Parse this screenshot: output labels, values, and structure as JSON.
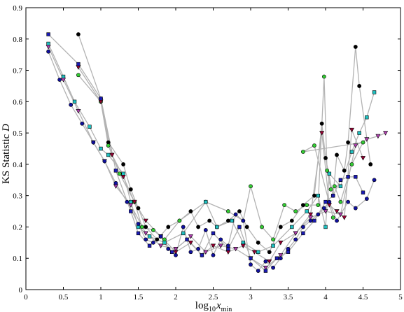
{
  "chart_data": {
    "type": "scatter",
    "xlabel_main": "log",
    "xlabel_sub": "10",
    "xlabel_var": "x",
    "xlabel_varsub": "min",
    "ylabel_main": "KS Statistic ",
    "ylabel_var": "D",
    "xlim": [
      0,
      5
    ],
    "ylim": [
      0,
      0.9
    ],
    "x_ticks": [
      "0",
      "0.5",
      "1",
      "1.5",
      "2",
      "2.5",
      "3",
      "3.5",
      "4",
      "4.5",
      "5"
    ],
    "y_ticks": [
      "0",
      "0.1",
      "0.2",
      "0.3",
      "0.4",
      "0.5",
      "0.6",
      "0.7",
      "0.8",
      "0.9"
    ],
    "grid": false,
    "connector_color": "#b3b3b3",
    "series": [
      {
        "marker": "circle",
        "color": "#000000",
        "points": [
          [
            0.7,
            0.815
          ],
          [
            1.0,
            0.61
          ],
          [
            1.1,
            0.47
          ],
          [
            1.3,
            0.4
          ],
          [
            1.4,
            0.32
          ],
          [
            1.5,
            0.26
          ],
          [
            1.6,
            0.2
          ],
          [
            1.75,
            0.16
          ],
          [
            1.9,
            0.2
          ],
          [
            2.05,
            0.22
          ],
          [
            2.2,
            0.25
          ],
          [
            2.3,
            0.2
          ],
          [
            2.45,
            0.22
          ],
          [
            2.55,
            0.2
          ],
          [
            2.7,
            0.22
          ],
          [
            2.85,
            0.25
          ],
          [
            2.95,
            0.2
          ],
          [
            3.1,
            0.15
          ],
          [
            3.25,
            0.12
          ],
          [
            3.4,
            0.2
          ],
          [
            3.55,
            0.22
          ],
          [
            3.7,
            0.27
          ],
          [
            3.85,
            0.3
          ],
          [
            3.95,
            0.53
          ],
          [
            4.0,
            0.42
          ],
          [
            4.1,
            0.3
          ],
          [
            4.15,
            0.43
          ],
          [
            4.25,
            0.38
          ],
          [
            4.3,
            0.47
          ],
          [
            4.4,
            0.775
          ],
          [
            4.45,
            0.65
          ],
          [
            4.6,
            0.4
          ]
        ]
      },
      {
        "marker": "circle",
        "color": "#33cc33",
        "points": [
          [
            0.7,
            0.685
          ],
          [
            1.0,
            0.6
          ],
          [
            1.1,
            0.46
          ],
          [
            1.25,
            0.37
          ],
          [
            1.45,
            0.28
          ],
          [
            1.55,
            0.2
          ],
          [
            1.7,
            0.19
          ],
          [
            1.85,
            0.16
          ],
          [
            2.05,
            0.22
          ],
          [
            2.4,
            0.28
          ],
          [
            2.7,
            0.25
          ],
          [
            2.9,
            0.22
          ],
          [
            3.0,
            0.33
          ],
          [
            3.15,
            0.2
          ],
          [
            3.3,
            0.16
          ],
          [
            3.45,
            0.27
          ],
          [
            3.6,
            0.25
          ],
          [
            3.75,
            0.27
          ],
          [
            3.9,
            0.27
          ],
          [
            3.98,
            0.68
          ],
          [
            4.02,
            0.38
          ],
          [
            4.07,
            0.32
          ],
          [
            4.12,
            0.33
          ],
          [
            4.2,
            0.28
          ],
          [
            4.35,
            0.4
          ],
          [
            4.5,
            0.47
          ],
          [
            3.7,
            0.44
          ],
          [
            3.85,
            0.46
          ],
          [
            4.1,
            0.23
          ]
        ]
      },
      {
        "marker": "square",
        "color": "#20c0c0",
        "points": [
          [
            0.3,
            0.785
          ],
          [
            0.5,
            0.68
          ],
          [
            0.65,
            0.6
          ],
          [
            0.85,
            0.52
          ],
          [
            1.0,
            0.45
          ],
          [
            1.1,
            0.43
          ],
          [
            1.3,
            0.37
          ],
          [
            1.4,
            0.28
          ],
          [
            1.5,
            0.2
          ],
          [
            1.65,
            0.17
          ],
          [
            1.85,
            0.15
          ],
          [
            2.1,
            0.18
          ],
          [
            2.4,
            0.28
          ],
          [
            2.55,
            0.2
          ],
          [
            2.75,
            0.22
          ],
          [
            2.9,
            0.15
          ],
          [
            3.1,
            0.12
          ],
          [
            3.3,
            0.14
          ],
          [
            3.55,
            0.2
          ],
          [
            3.75,
            0.25
          ],
          [
            3.9,
            0.3
          ],
          [
            4.0,
            0.2
          ],
          [
            4.05,
            0.37
          ],
          [
            4.2,
            0.33
          ],
          [
            4.35,
            0.44
          ],
          [
            4.45,
            0.5
          ],
          [
            4.55,
            0.55
          ],
          [
            4.65,
            0.63
          ]
        ]
      },
      {
        "marker": "triangle",
        "color": "#990033",
        "points": [
          [
            0.7,
            0.71
          ],
          [
            1.0,
            0.6
          ],
          [
            1.15,
            0.43
          ],
          [
            1.3,
            0.36
          ],
          [
            1.45,
            0.28
          ],
          [
            1.6,
            0.22
          ],
          [
            1.8,
            0.17
          ],
          [
            2.0,
            0.12
          ],
          [
            2.2,
            0.15
          ],
          [
            2.35,
            0.11
          ],
          [
            2.5,
            0.14
          ],
          [
            2.7,
            0.12
          ],
          [
            2.9,
            0.14
          ],
          [
            3.05,
            0.12
          ],
          [
            3.25,
            0.09
          ],
          [
            3.4,
            0.15
          ],
          [
            3.6,
            0.18
          ],
          [
            3.8,
            0.24
          ],
          [
            3.95,
            0.5
          ],
          [
            4.05,
            0.27
          ],
          [
            4.15,
            0.25
          ],
          [
            4.25,
            0.23
          ],
          [
            4.35,
            0.51
          ],
          [
            4.5,
            0.42
          ]
        ]
      },
      {
        "marker": "triangle",
        "color": "#b040b0",
        "points": [
          [
            0.3,
            0.775
          ],
          [
            0.5,
            0.67
          ],
          [
            0.7,
            0.57
          ],
          [
            0.9,
            0.47
          ],
          [
            1.05,
            0.41
          ],
          [
            1.2,
            0.33
          ],
          [
            1.4,
            0.27
          ],
          [
            1.6,
            0.18
          ],
          [
            1.8,
            0.14
          ],
          [
            2.0,
            0.13
          ],
          [
            2.2,
            0.17
          ],
          [
            2.4,
            0.12
          ],
          [
            2.6,
            0.14
          ],
          [
            2.8,
            0.13
          ],
          [
            3.0,
            0.1
          ],
          [
            3.2,
            0.07
          ],
          [
            3.4,
            0.11
          ],
          [
            3.6,
            0.18
          ],
          [
            3.8,
            0.23
          ],
          [
            4.0,
            0.25
          ],
          [
            4.2,
            0.24
          ],
          [
            4.4,
            0.46
          ],
          [
            4.55,
            0.48
          ],
          [
            4.7,
            0.49
          ],
          [
            4.8,
            0.5
          ]
        ]
      },
      {
        "marker": "square",
        "color": "#1a1ab3",
        "points": [
          [
            0.3,
            0.815
          ],
          [
            0.7,
            0.72
          ],
          [
            1.0,
            0.61
          ],
          [
            1.2,
            0.38
          ],
          [
            1.4,
            0.25
          ],
          [
            1.5,
            0.18
          ],
          [
            1.65,
            0.14
          ],
          [
            1.8,
            0.17
          ],
          [
            1.95,
            0.12
          ],
          [
            2.15,
            0.16
          ],
          [
            2.35,
            0.11
          ],
          [
            2.5,
            0.18
          ],
          [
            2.7,
            0.13
          ],
          [
            2.85,
            0.2
          ],
          [
            3.0,
            0.1
          ],
          [
            3.2,
            0.06
          ],
          [
            3.35,
            0.1
          ],
          [
            3.5,
            0.12
          ],
          [
            3.7,
            0.18
          ],
          [
            3.85,
            0.22
          ],
          [
            4.0,
            0.28
          ],
          [
            4.1,
            0.3
          ],
          [
            4.2,
            0.35
          ],
          [
            4.3,
            0.36
          ],
          [
            4.4,
            0.36
          ],
          [
            4.5,
            0.31
          ]
        ]
      },
      {
        "marker": "circle",
        "color": "#1010a0",
        "points": [
          [
            0.3,
            0.76
          ],
          [
            0.45,
            0.67
          ],
          [
            0.6,
            0.59
          ],
          [
            0.75,
            0.53
          ],
          [
            0.9,
            0.47
          ],
          [
            1.05,
            0.41
          ],
          [
            1.2,
            0.34
          ],
          [
            1.35,
            0.28
          ],
          [
            1.5,
            0.21
          ],
          [
            1.6,
            0.16
          ],
          [
            1.7,
            0.15
          ],
          [
            1.8,
            0.17
          ],
          [
            1.9,
            0.13
          ],
          [
            2.0,
            0.11
          ],
          [
            2.1,
            0.2
          ],
          [
            2.2,
            0.12
          ],
          [
            2.3,
            0.13
          ],
          [
            2.4,
            0.19
          ],
          [
            2.5,
            0.11
          ],
          [
            2.6,
            0.16
          ],
          [
            2.7,
            0.14
          ],
          [
            2.8,
            0.24
          ],
          [
            2.9,
            0.22
          ],
          [
            3.0,
            0.08
          ],
          [
            3.1,
            0.06
          ],
          [
            3.2,
            0.09
          ],
          [
            3.3,
            0.07
          ],
          [
            3.4,
            0.1
          ],
          [
            3.5,
            0.13
          ],
          [
            3.6,
            0.16
          ],
          [
            3.7,
            0.2
          ],
          [
            3.8,
            0.22
          ],
          [
            3.9,
            0.24
          ],
          [
            3.98,
            0.26
          ],
          [
            4.05,
            0.28
          ],
          [
            4.15,
            0.22
          ],
          [
            4.3,
            0.28
          ],
          [
            4.4,
            0.26
          ],
          [
            4.55,
            0.29
          ],
          [
            4.65,
            0.35
          ]
        ]
      }
    ]
  }
}
